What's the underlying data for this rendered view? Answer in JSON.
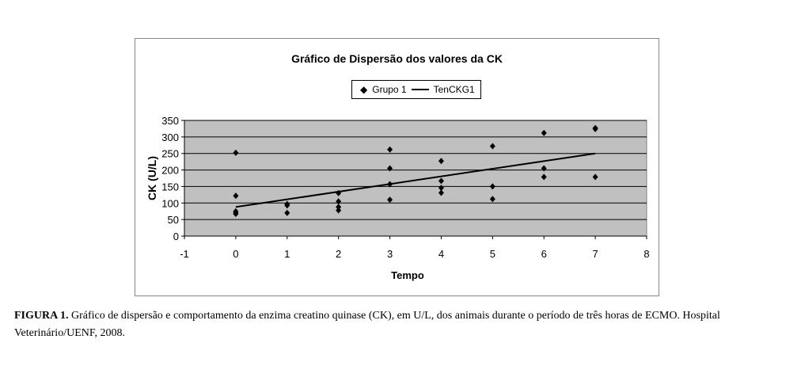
{
  "chart_data": {
    "type": "scatter",
    "title": "Gráfico de Dispersão dos valores da CK",
    "xlabel": "Tempo",
    "ylabel": "CK (U/L)",
    "xlim": [
      -1,
      8
    ],
    "ylim": [
      0,
      350
    ],
    "xticks": [
      "-1",
      "0",
      "1",
      "2",
      "3",
      "4",
      "5",
      "6",
      "7",
      "8"
    ],
    "yticks": [
      "0",
      "50",
      "100",
      "150",
      "200",
      "250",
      "300",
      "350"
    ],
    "grid": true,
    "legend_position": "top",
    "legend": [
      "Grupo 1",
      "TenCKG1"
    ],
    "series": [
      {
        "name": "Grupo 1",
        "points": [
          [
            0,
            252
          ],
          [
            0,
            122
          ],
          [
            0,
            75
          ],
          [
            0,
            70
          ],
          [
            0,
            67
          ],
          [
            1,
            97
          ],
          [
            1,
            93
          ],
          [
            1,
            70
          ],
          [
            2,
            130
          ],
          [
            2,
            105
          ],
          [
            2,
            88
          ],
          [
            2,
            78
          ],
          [
            3,
            262
          ],
          [
            3,
            205
          ],
          [
            3,
            157
          ],
          [
            3,
            110
          ],
          [
            4,
            227
          ],
          [
            4,
            167
          ],
          [
            4,
            146
          ],
          [
            4,
            131
          ],
          [
            5,
            272
          ],
          [
            5,
            150
          ],
          [
            5,
            112
          ],
          [
            6,
            312
          ],
          [
            6,
            205
          ],
          [
            6,
            179
          ],
          [
            7,
            327
          ],
          [
            7,
            324
          ],
          [
            7,
            179
          ]
        ]
      },
      {
        "name": "TenCKG1",
        "type": "line",
        "points": [
          [
            0,
            88
          ],
          [
            7,
            250
          ]
        ]
      }
    ]
  },
  "caption": {
    "label": "FIGURA 1.",
    "text": " Gráfico de dispersão e comportamento da enzima creatino quinase (CK), em U/L, dos animais durante o período de três horas de ECMO. Hospital Veterinário/UENF, 2008."
  }
}
